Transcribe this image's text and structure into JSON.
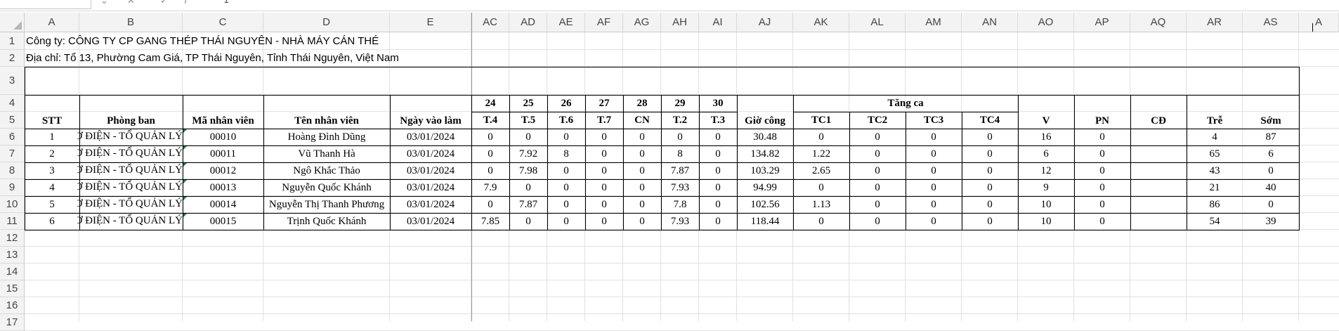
{
  "formula_bar": {
    "name_box": "",
    "cancel": "✕",
    "enter": "✓",
    "fx": "f",
    "content": "1"
  },
  "columns": [
    "A",
    "B",
    "C",
    "D",
    "E",
    "AC",
    "AD",
    "AE",
    "AF",
    "AG",
    "AH",
    "AI",
    "AJ",
    "AK",
    "AL",
    "AM",
    "AN",
    "AO",
    "AP",
    "AQ",
    "AR",
    "AS",
    "A"
  ],
  "rows": [
    "1",
    "2",
    "3",
    "4",
    "5",
    "6",
    "7",
    "8",
    "9",
    "10",
    "11",
    "12",
    "13",
    "14",
    "15",
    "16",
    "17"
  ],
  "info": {
    "company": "Công ty: CÔNG TY CP GANG THÉP THÁI NGUYÊN - NHÀ MÁY CÁN THÉ",
    "address": "Địa chỉ: Tổ 13, Phường Cam Giá, TP Thái Nguyên, Tỉnh Thái Nguyên, Việt Nam"
  },
  "headers": {
    "stt": "STT",
    "phong_ban": "Phòng ban",
    "ma_nv": "Mã nhân viên",
    "ten_nv": "Tên nhân viên",
    "ngay_vao": "Ngày vào làm",
    "days": [
      "24",
      "25",
      "26",
      "27",
      "28",
      "29",
      "30"
    ],
    "weekdays": [
      "T.4",
      "T.5",
      "T.6",
      "T.7",
      "CN",
      "T.2",
      "T.3"
    ],
    "gio_cong": "Giờ công",
    "tang_ca": "Tăng ca",
    "tc": [
      "TC1",
      "TC2",
      "TC3",
      "TC4"
    ],
    "v": "V",
    "pn": "PN",
    "cd": "CĐ",
    "tre": "Trễ",
    "som": "Sớm"
  },
  "employees": [
    {
      "stt": "1",
      "phong_ban": "XƯỞNG CƠ ĐIỆN - TỔ QUẢN LÝ",
      "ma": "00010",
      "ten": "Hoàng Đình Dũng",
      "ngay": "03/01/2024",
      "d": [
        "0",
        "0",
        "0",
        "0",
        "0",
        "0",
        "0"
      ],
      "gio": "30.48",
      "tc": [
        "0",
        "0",
        "0",
        "0"
      ],
      "v": "16",
      "pn": "0",
      "cd": "",
      "tre": "4",
      "som": "87"
    },
    {
      "stt": "2",
      "phong_ban": "XƯỞNG CƠ ĐIỆN - TỔ QUẢN LÝ",
      "ma": "00011",
      "ten": "Vũ Thanh Hà",
      "ngay": "03/01/2024",
      "d": [
        "0",
        "7.92",
        "8",
        "0",
        "0",
        "8",
        "0"
      ],
      "gio": "134.82",
      "tc": [
        "1.22",
        "0",
        "0",
        "0"
      ],
      "v": "6",
      "pn": "0",
      "cd": "",
      "tre": "65",
      "som": "6"
    },
    {
      "stt": "3",
      "phong_ban": "XƯỞNG CƠ ĐIỆN - TỔ QUẢN LÝ",
      "ma": "00012",
      "ten": "Ngô Khắc Thảo",
      "ngay": "03/01/2024",
      "d": [
        "0",
        "7.98",
        "0",
        "0",
        "0",
        "7.87",
        "0"
      ],
      "gio": "103.29",
      "tc": [
        "2.65",
        "0",
        "0",
        "0"
      ],
      "v": "12",
      "pn": "0",
      "cd": "",
      "tre": "43",
      "som": "0"
    },
    {
      "stt": "4",
      "phong_ban": "XƯỞNG CƠ ĐIỆN - TỔ QUẢN LÝ",
      "ma": "00013",
      "ten": "Nguyễn Quốc Khánh",
      "ngay": "03/01/2024",
      "d": [
        "7.9",
        "0",
        "0",
        "0",
        "0",
        "7.93",
        "0"
      ],
      "gio": "94.99",
      "tc": [
        "0",
        "0",
        "0",
        "0"
      ],
      "v": "9",
      "pn": "0",
      "cd": "",
      "tre": "21",
      "som": "40"
    },
    {
      "stt": "5",
      "phong_ban": "XƯỞNG CƠ ĐIỆN - TỔ QUẢN LÝ",
      "ma": "00014",
      "ten": "Nguyễn Thị Thanh Phương",
      "ngay": "03/01/2024",
      "d": [
        "0",
        "7.87",
        "0",
        "0",
        "0",
        "7.8",
        "0"
      ],
      "gio": "102.56",
      "tc": [
        "1.13",
        "0",
        "0",
        "0"
      ],
      "v": "10",
      "pn": "0",
      "cd": "",
      "tre": "86",
      "som": "0"
    },
    {
      "stt": "6",
      "phong_ban": "XƯỞNG CƠ ĐIỆN - TỔ QUẢN LÝ",
      "ma": "00015",
      "ten": "Trịnh Quốc Khánh",
      "ngay": "03/01/2024",
      "d": [
        "7.85",
        "0",
        "0",
        "0",
        "0",
        "7.93",
        "0"
      ],
      "gio": "118.44",
      "tc": [
        "0",
        "0",
        "0",
        "0"
      ],
      "v": "10",
      "pn": "0",
      "cd": "",
      "tre": "54",
      "som": "39"
    }
  ]
}
